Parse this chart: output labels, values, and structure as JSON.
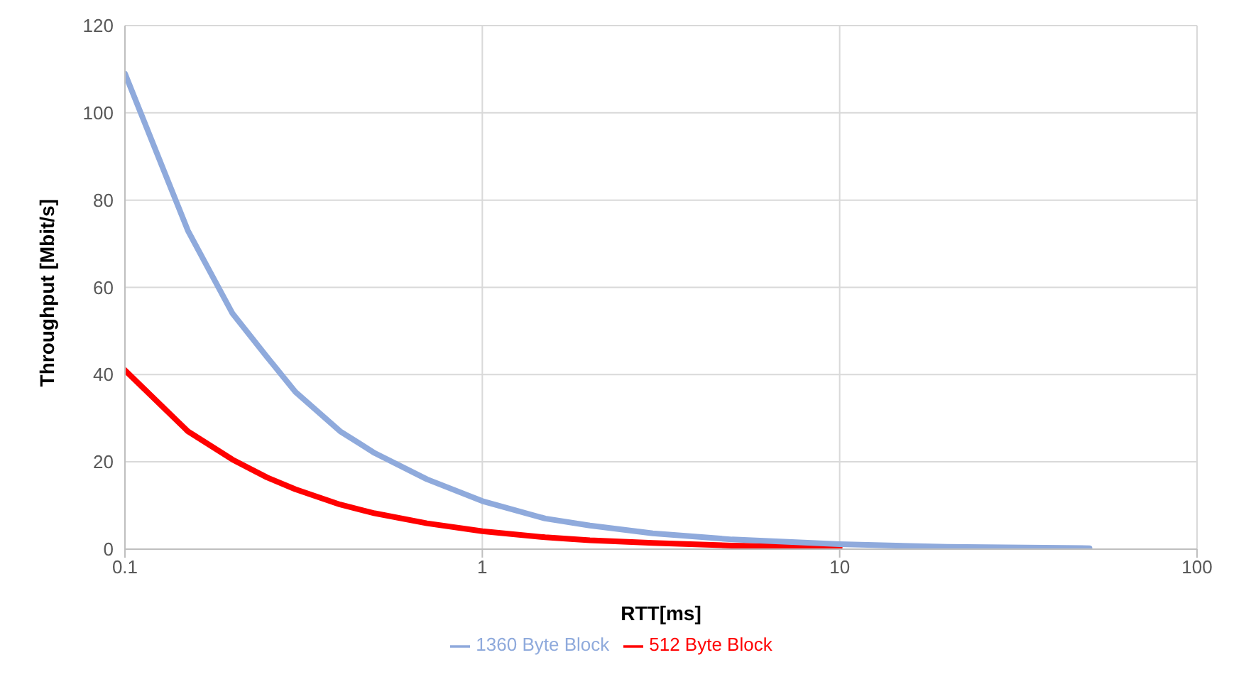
{
  "chart_data": {
    "type": "line",
    "xlabel": "RTT[ms]",
    "ylabel": "Throughput [Mbit/s]",
    "x": [
      0.1,
      0.15,
      0.2,
      0.25,
      0.3,
      0.4,
      0.5,
      0.7,
      1,
      1.5,
      2,
      3,
      5,
      10,
      20,
      50
    ],
    "series": [
      {
        "name": "512 Byte Block",
        "color": "#ff0000",
        "values": [
          41,
          27,
          20.5,
          16.4,
          13.7,
          10.2,
          8.2,
          5.9,
          4.1,
          2.7,
          2.0,
          1.4,
          0.8,
          0.4,
          null,
          null
        ]
      },
      {
        "name": "1360 Byte Block",
        "color": "#8faadc",
        "values": [
          109,
          73,
          54,
          44,
          36,
          27,
          22,
          16,
          11,
          7,
          5.4,
          3.6,
          2.2,
          1.1,
          0.5,
          0.2
        ]
      }
    ],
    "log": "x",
    "xlim": [
      0.1,
      100
    ],
    "xticks": [
      0.1,
      1,
      10,
      100
    ],
    "ylim": [
      0,
      120
    ],
    "yticks": [
      0,
      20,
      40,
      60,
      80,
      100,
      120
    ],
    "grid": true,
    "legend": "bottom",
    "marker": "none",
    "line_style": "solid"
  }
}
